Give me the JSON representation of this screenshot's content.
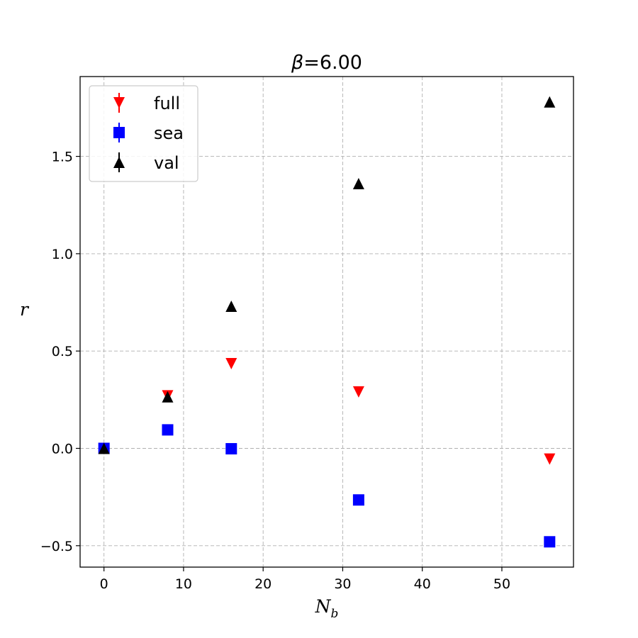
{
  "chart_data": {
    "type": "scatter",
    "title": "β=6.00",
    "xlabel": "N_b",
    "ylabel": "r",
    "xlim": [
      -3,
      59
    ],
    "ylim": [
      -0.61,
      1.91
    ],
    "xticks": [
      0,
      10,
      20,
      30,
      40,
      50
    ],
    "yticks": [
      -0.5,
      0.0,
      0.5,
      1.0,
      1.5
    ],
    "xtick_labels": [
      "0",
      "10",
      "20",
      "30",
      "40",
      "50"
    ],
    "ytick_labels": [
      "−0.5",
      "0.0",
      "0.5",
      "1.0",
      "1.5"
    ],
    "grid": true,
    "legend_placement": "top-left",
    "series": [
      {
        "name": "full",
        "marker": "triangle-down",
        "color": "#ff0000",
        "x": [
          0,
          8,
          16,
          32,
          56
        ],
        "y": [
          0.0,
          0.27,
          0.435,
          0.29,
          -0.055
        ]
      },
      {
        "name": "sea",
        "marker": "square",
        "color": "#0000ff",
        "x": [
          0,
          8,
          16,
          32,
          56
        ],
        "y": [
          0.0,
          0.095,
          -0.002,
          -0.265,
          -0.48
        ]
      },
      {
        "name": "val",
        "marker": "triangle-up",
        "color": "#000000",
        "x": [
          0,
          8,
          16,
          32,
          56
        ],
        "y": [
          0.0,
          0.265,
          0.73,
          1.36,
          1.78
        ]
      }
    ]
  }
}
